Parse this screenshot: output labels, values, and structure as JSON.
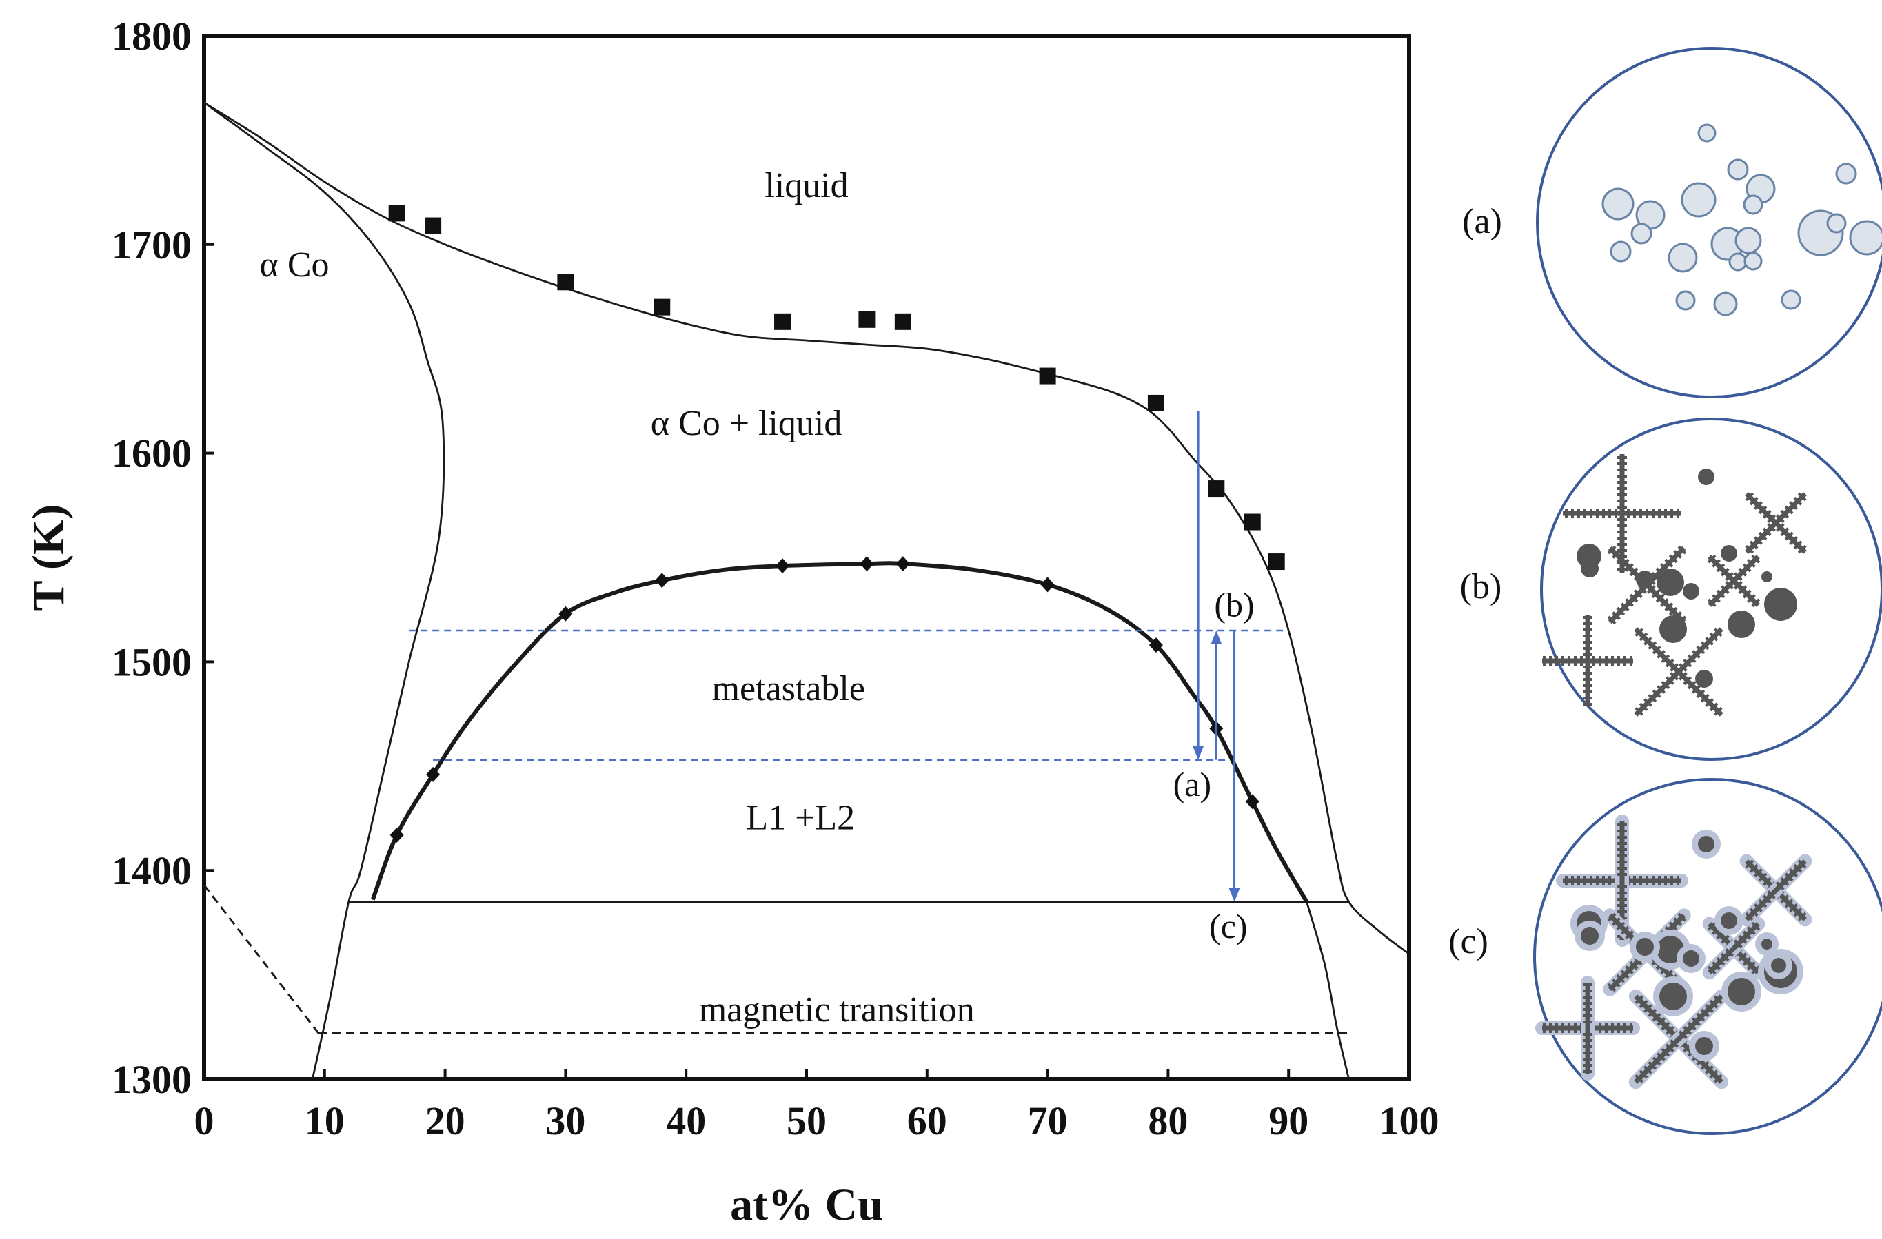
{
  "chart_data": {
    "type": "scatter",
    "title": "",
    "xlabel": "at% Cu",
    "ylabel": "T (K)",
    "xlim": [
      0,
      100
    ],
    "ylim": [
      1300,
      1800
    ],
    "x_ticks": [
      0,
      10,
      20,
      30,
      40,
      50,
      60,
      70,
      80,
      90,
      100
    ],
    "y_ticks": [
      1300,
      1400,
      1500,
      1600,
      1700,
      1800
    ],
    "series": [
      {
        "name": "liquidus data",
        "marker": "square",
        "points": [
          [
            16,
            1715
          ],
          [
            19,
            1709
          ],
          [
            30,
            1682
          ],
          [
            38,
            1670
          ],
          [
            48,
            1663
          ],
          [
            55,
            1664
          ],
          [
            58,
            1663
          ],
          [
            70,
            1637
          ],
          [
            79,
            1624
          ],
          [
            84,
            1583
          ],
          [
            87,
            1567
          ],
          [
            89,
            1548
          ]
        ]
      },
      {
        "name": "miscibility gap data",
        "marker": "diamond",
        "points": [
          [
            16,
            1417
          ],
          [
            19,
            1446
          ],
          [
            30,
            1523
          ],
          [
            38,
            1539
          ],
          [
            48,
            1546
          ],
          [
            55,
            1547
          ],
          [
            58,
            1547
          ],
          [
            70,
            1537
          ],
          [
            79,
            1508
          ],
          [
            84,
            1468
          ],
          [
            87,
            1433
          ]
        ]
      }
    ],
    "curves": [
      {
        "name": "liquidus",
        "style": "solid",
        "points": [
          [
            0,
            1768
          ],
          [
            5,
            1750
          ],
          [
            10,
            1730
          ],
          [
            15,
            1713
          ],
          [
            20,
            1700
          ],
          [
            25,
            1689
          ],
          [
            30,
            1679
          ],
          [
            35,
            1670
          ],
          [
            40,
            1662
          ],
          [
            45,
            1656
          ],
          [
            50,
            1654
          ],
          [
            55,
            1652
          ],
          [
            60,
            1650
          ],
          [
            65,
            1645
          ],
          [
            70,
            1638
          ],
          [
            75,
            1630
          ],
          [
            78,
            1622
          ],
          [
            80,
            1612
          ],
          [
            82,
            1598
          ],
          [
            85,
            1578
          ],
          [
            88,
            1548
          ],
          [
            90,
            1515
          ],
          [
            92,
            1465
          ],
          [
            94,
            1405
          ],
          [
            95,
            1385
          ],
          [
            97.5,
            1371
          ],
          [
            100,
            1360
          ]
        ]
      },
      {
        "name": "solidus",
        "style": "solid",
        "points": [
          [
            0,
            1768
          ],
          [
            5,
            1747
          ],
          [
            10,
            1725
          ],
          [
            14,
            1700
          ],
          [
            17,
            1672
          ],
          [
            18.5,
            1645
          ],
          [
            19.8,
            1615
          ],
          [
            19.5,
            1560
          ],
          [
            17,
            1500
          ],
          [
            15,
            1450
          ],
          [
            13,
            1400
          ],
          [
            12,
            1385
          ],
          [
            10.5,
            1340
          ],
          [
            9,
            1300
          ]
        ]
      },
      {
        "name": "miscibility gap",
        "style": "bold",
        "points": [
          [
            14,
            1386
          ],
          [
            16,
            1417
          ],
          [
            19,
            1446
          ],
          [
            22,
            1472
          ],
          [
            26,
            1500
          ],
          [
            30,
            1523
          ],
          [
            34,
            1533
          ],
          [
            38,
            1539
          ],
          [
            43,
            1544
          ],
          [
            48,
            1546
          ],
          [
            55,
            1547
          ],
          [
            58,
            1547
          ],
          [
            64,
            1544
          ],
          [
            70,
            1537
          ],
          [
            75,
            1525
          ],
          [
            79,
            1508
          ],
          [
            82,
            1485
          ],
          [
            84,
            1468
          ],
          [
            87,
            1433
          ],
          [
            89,
            1410
          ],
          [
            91.5,
            1385
          ]
        ]
      },
      {
        "name": "monotectic",
        "style": "solid",
        "points": [
          [
            12,
            1385
          ],
          [
            95,
            1385
          ]
        ]
      },
      {
        "name": "Cu solvus",
        "style": "solid",
        "points": [
          [
            91.5,
            1385
          ],
          [
            93,
            1355
          ],
          [
            94,
            1325
          ],
          [
            95,
            1300
          ]
        ]
      },
      {
        "name": "magnetic transition",
        "style": "dashed",
        "points": [
          [
            9.5,
            1322
          ],
          [
            95,
            1322
          ]
        ]
      },
      {
        "name": "magnetic transition (alpha Co)",
        "style": "dashed",
        "points": [
          [
            0,
            1393
          ],
          [
            9.5,
            1322
          ]
        ]
      },
      {
        "name": "undercooling level (b)",
        "style": "blue-dashed",
        "points": [
          [
            17,
            1515
          ],
          [
            90,
            1515
          ]
        ]
      },
      {
        "name": "undercooling level (a)",
        "style": "blue-dashed",
        "points": [
          [
            19,
            1453
          ],
          [
            85,
            1453
          ]
        ]
      }
    ],
    "arrows": [
      {
        "name": "cooling to (a)",
        "x": 82.5,
        "from": 1620,
        "to": 1453
      },
      {
        "name": "recalescence to (b)",
        "x": 84,
        "from": 1453,
        "to": 1515
      },
      {
        "name": "cooling to (c)",
        "x": 85.5,
        "from": 1515,
        "to": 1385
      }
    ],
    "annotations": [
      {
        "text": "liquid",
        "x": 50,
        "y": 1728
      },
      {
        "text": "α Co",
        "x": 7.5,
        "y": 1690
      },
      {
        "text": "α Co + liquid",
        "x": 45,
        "y": 1614
      },
      {
        "text": "metastable",
        "x": 48.5,
        "y": 1487
      },
      {
        "text": "L1 +L2",
        "x": 49.5,
        "y": 1425
      },
      {
        "text": "magnetic transition",
        "x": 52.5,
        "y": 1333
      },
      {
        "text": "(a)",
        "x": 82,
        "y": 1441
      },
      {
        "text": "(b)",
        "x": 85.5,
        "y": 1527
      },
      {
        "text": "(c)",
        "x": 85,
        "y": 1373
      }
    ]
  },
  "microstructures": [
    {
      "label": "(a)",
      "description": "Cu-rich liquid droplets"
    },
    {
      "label": "(b)",
      "description": "dendrites and droplets"
    },
    {
      "label": "(c)",
      "description": "dendrites with coated droplets"
    }
  ],
  "colors": {
    "axis": "#111111",
    "curve": "#1a1a1a",
    "guide_blue": "#4a6fc4",
    "droplet_fill": "#dde3ea",
    "droplet_edge": "#6a84a8",
    "solid_phase": "#555555",
    "coating": "#b9c2d6",
    "panel_edge": "#3a5a99"
  }
}
